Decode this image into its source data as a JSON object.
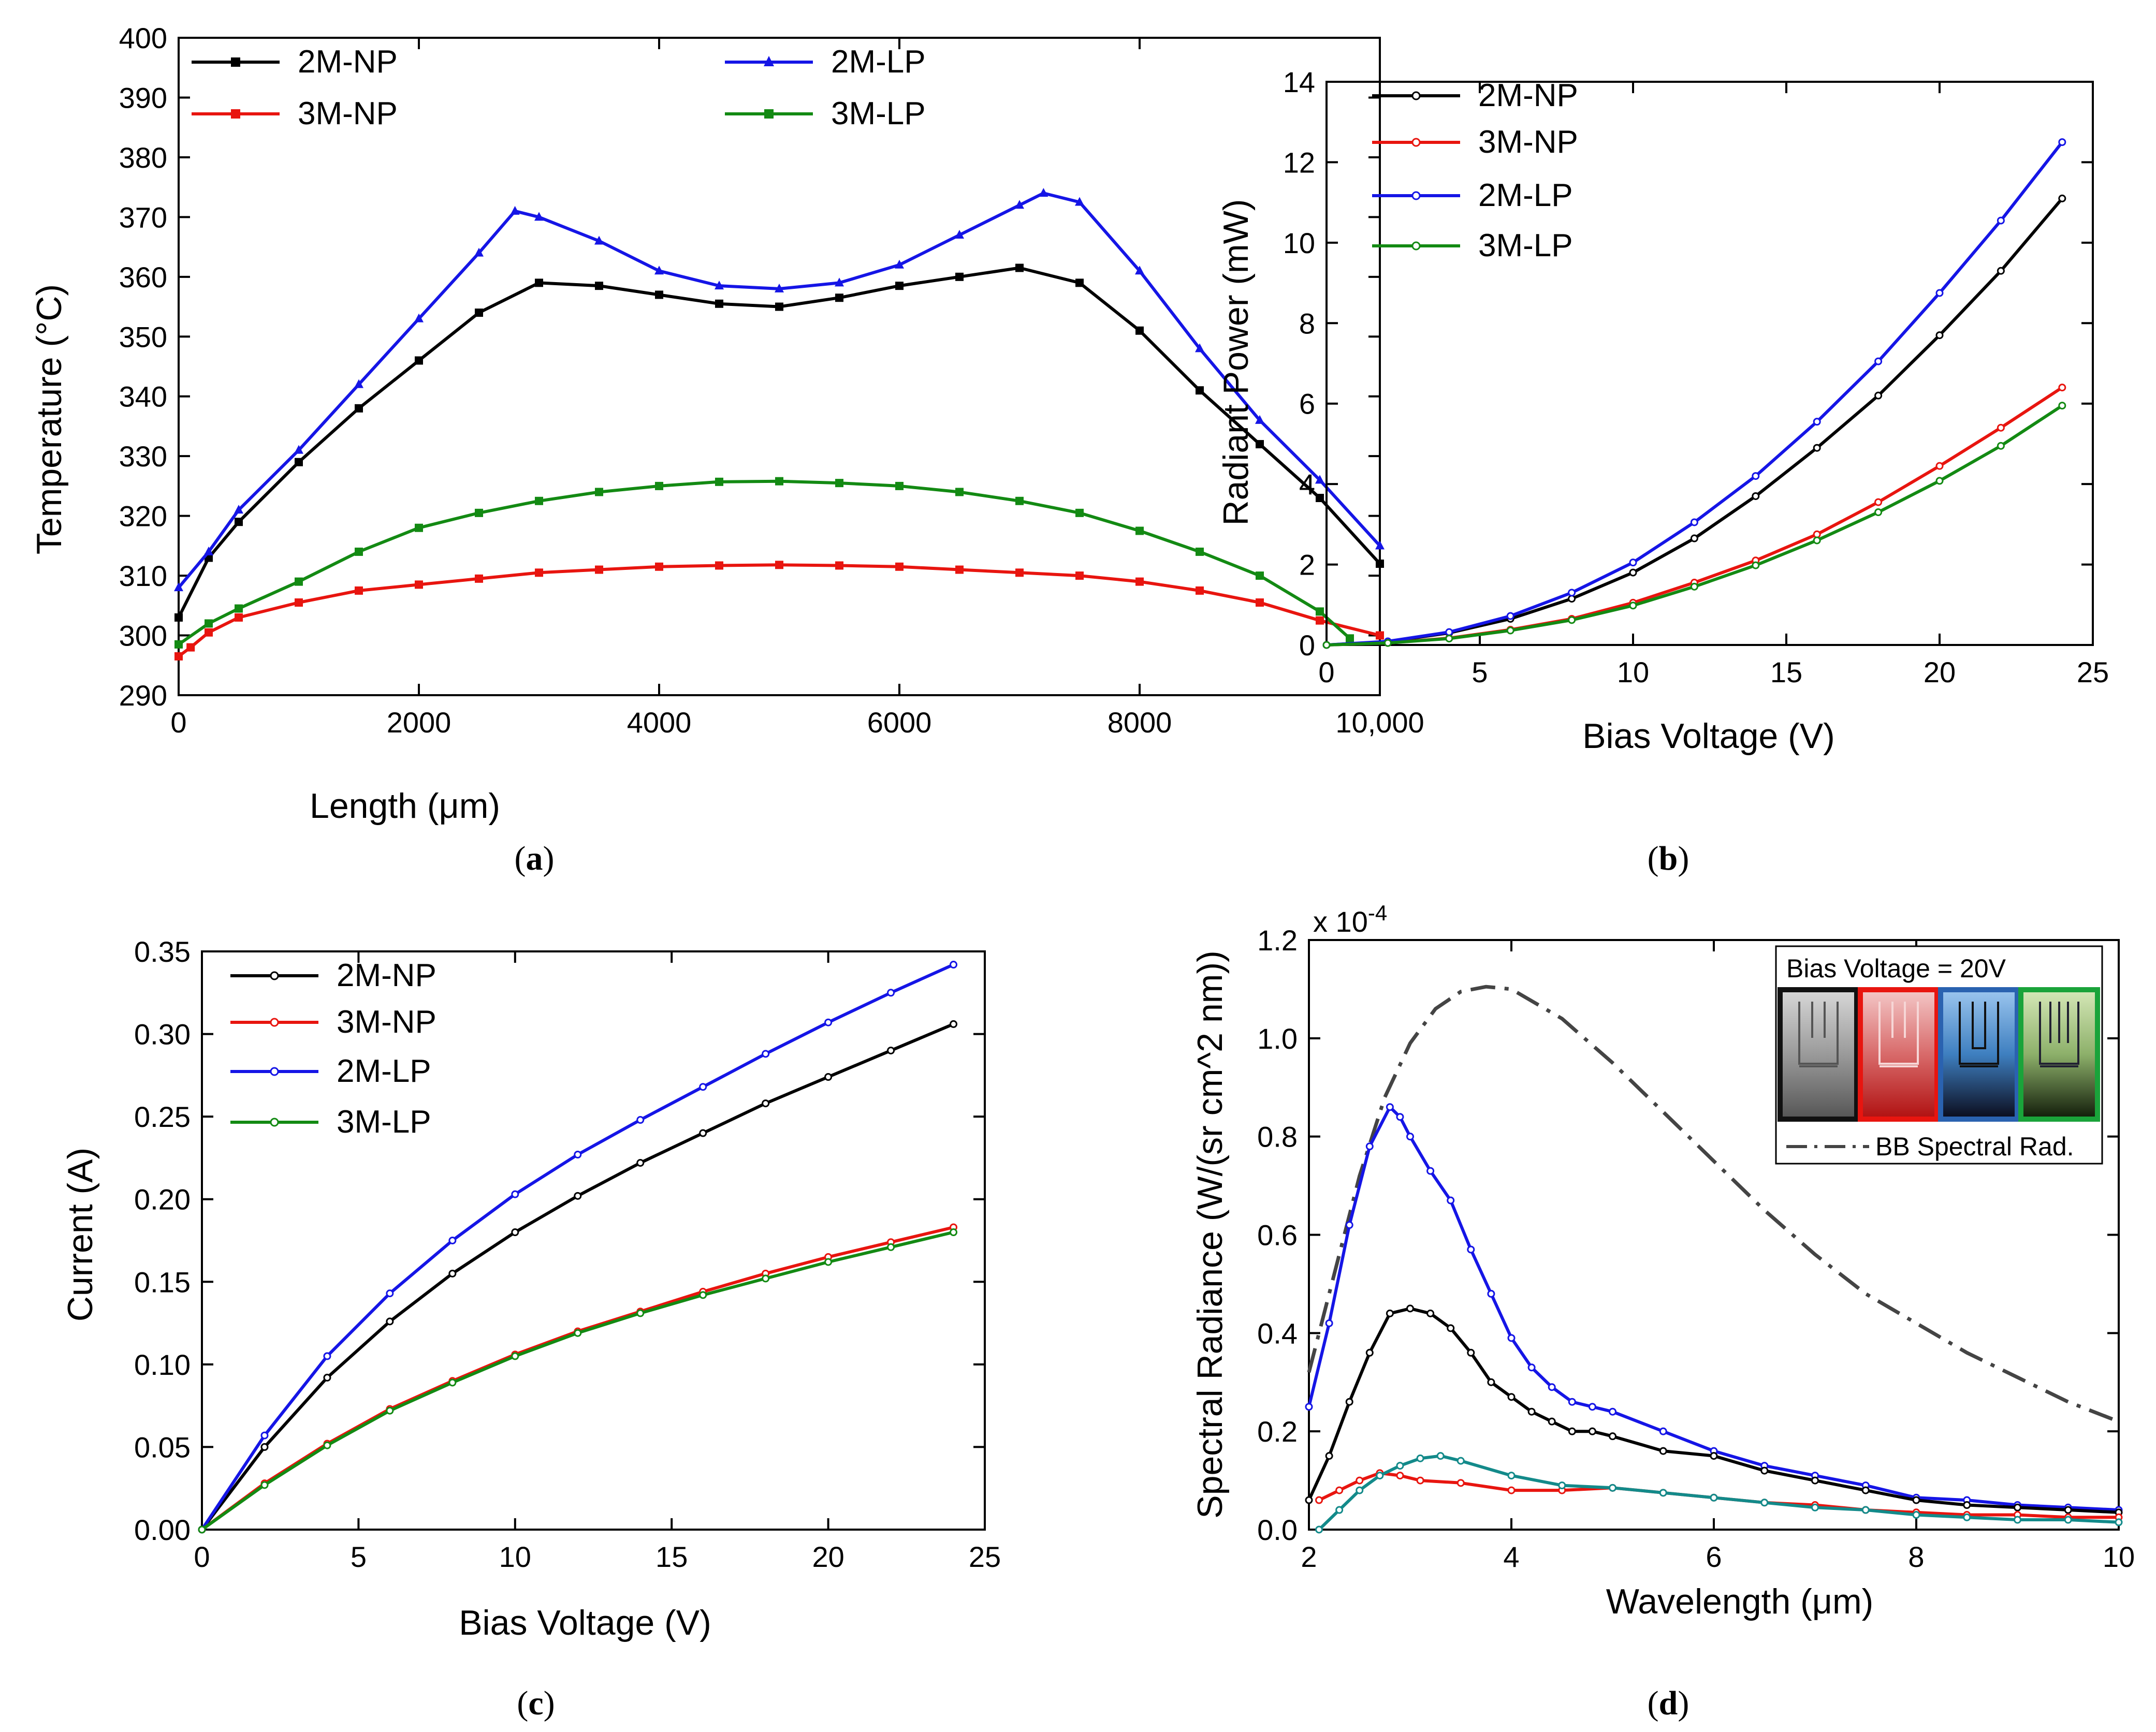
{
  "colors": {
    "2M-NP": "#000000",
    "3M-NP": "#e8150f",
    "2M-LP": "#1515e6",
    "3M-LP": "#138a13",
    "3M-LP-d": "#138a8a",
    "BB": "#444444"
  },
  "chart_data": [
    {
      "id": "a",
      "type": "line",
      "caption": {
        "open": "(",
        "letter": "a",
        "close": ")"
      },
      "xlabel": "Length (μm)",
      "ylabel": "Temperature (°C)",
      "xlim": [
        0,
        10000
      ],
      "ylim": [
        290,
        400
      ],
      "xticks": [
        0,
        2000,
        4000,
        6000,
        8000,
        10000
      ],
      "xtick_labels": [
        "0",
        "2000",
        "4000",
        "6000",
        "8000",
        "10,000"
      ],
      "yticks": [
        290,
        300,
        310,
        320,
        330,
        340,
        350,
        360,
        370,
        380,
        390,
        400
      ],
      "ytick_labels": [
        "290",
        "300",
        "310",
        "320",
        "330",
        "340",
        "350",
        "360",
        "370",
        "380",
        "390",
        "400"
      ],
      "series": [
        {
          "name": "2M-NP",
          "marker": "square",
          "x": [
            0,
            250,
            500,
            1000,
            1500,
            2000,
            2500,
            3000,
            3500,
            4000,
            4500,
            5000,
            5500,
            6000,
            6500,
            7000,
            7500,
            8000,
            8500,
            9000,
            9500,
            10000
          ],
          "y": [
            303,
            313,
            319,
            329,
            338,
            346,
            354,
            359,
            358.5,
            357,
            355.5,
            355,
            356.5,
            358.5,
            360,
            361.5,
            359,
            351,
            341,
            332,
            323,
            312
          ]
        },
        {
          "name": "3M-NP",
          "marker": "square",
          "x": [
            0,
            100,
            250,
            500,
            1000,
            1500,
            2000,
            2500,
            3000,
            3500,
            4000,
            4500,
            5000,
            5500,
            6000,
            6500,
            7000,
            7500,
            8000,
            8500,
            9000,
            9500,
            10000
          ],
          "y": [
            296.5,
            298,
            300.5,
            303,
            305.5,
            307.5,
            308.5,
            309.5,
            310.5,
            311,
            311.5,
            311.7,
            311.8,
            311.7,
            311.5,
            311,
            310.5,
            310,
            309,
            307.5,
            305.5,
            302.5,
            300
          ]
        },
        {
          "name": "2M-LP",
          "marker": "triangle",
          "x": [
            0,
            250,
            500,
            1000,
            1500,
            2000,
            2500,
            2800,
            3000,
            3500,
            4000,
            4500,
            5000,
            5500,
            6000,
            6500,
            7000,
            7200,
            7500,
            8000,
            8500,
            9000,
            9500,
            10000
          ],
          "y": [
            308,
            314,
            321,
            331,
            342,
            353,
            364,
            371,
            370,
            366,
            361,
            358.5,
            358,
            359,
            362,
            367,
            372,
            374,
            372.5,
            361,
            348,
            336,
            326,
            315
          ]
        },
        {
          "name": "3M-LP",
          "marker": "square",
          "x": [
            0,
            250,
            500,
            1000,
            1500,
            2000,
            2500,
            3000,
            3500,
            4000,
            4500,
            5000,
            5500,
            6000,
            6500,
            7000,
            7500,
            8000,
            8500,
            9000,
            9500,
            9750
          ],
          "y": [
            298.5,
            302,
            304.5,
            309,
            314,
            318,
            320.5,
            322.5,
            324,
            325,
            325.7,
            325.8,
            325.5,
            325,
            324,
            322.5,
            320.5,
            317.5,
            314,
            310,
            304,
            299.5
          ]
        }
      ],
      "legend": {
        "placement": "top",
        "entries": [
          "2M-NP",
          "3M-NP",
          "2M-LP",
          "3M-LP"
        ]
      }
    },
    {
      "id": "b",
      "type": "line",
      "caption": {
        "open": "(",
        "letter": "b",
        "close": ")"
      },
      "xlabel": "Bias Voltage (V)",
      "ylabel": "Radiant Power (mW)",
      "xlim": [
        0,
        25
      ],
      "ylim": [
        0,
        14
      ],
      "xticks": [
        0,
        5,
        10,
        15,
        20,
        25
      ],
      "xtick_labels": [
        "0",
        "5",
        "10",
        "15",
        "20",
        "25"
      ],
      "yticks": [
        0,
        2,
        4,
        6,
        8,
        10,
        12,
        14
      ],
      "ytick_labels": [
        "0",
        "2",
        "4",
        "6",
        "8",
        "10",
        "12",
        "14"
      ],
      "series": [
        {
          "name": "2M-NP",
          "x": [
            0,
            2,
            4,
            6,
            8,
            10,
            12,
            14,
            16,
            18,
            20,
            22,
            24
          ],
          "y": [
            0,
            0.08,
            0.3,
            0.65,
            1.15,
            1.8,
            2.65,
            3.7,
            4.9,
            6.2,
            7.7,
            9.3,
            11.1
          ]
        },
        {
          "name": "3M-NP",
          "x": [
            0,
            2,
            4,
            6,
            8,
            10,
            12,
            14,
            16,
            18,
            20,
            22,
            24
          ],
          "y": [
            0,
            0.05,
            0.17,
            0.38,
            0.65,
            1.05,
            1.55,
            2.1,
            2.75,
            3.55,
            4.45,
            5.4,
            6.4
          ]
        },
        {
          "name": "2M-LP",
          "x": [
            0,
            2,
            4,
            6,
            8,
            10,
            12,
            14,
            16,
            18,
            20,
            22,
            24
          ],
          "y": [
            0,
            0.09,
            0.32,
            0.72,
            1.3,
            2.05,
            3.05,
            4.2,
            5.55,
            7.05,
            8.75,
            10.55,
            12.5
          ]
        },
        {
          "name": "3M-LP",
          "x": [
            0,
            2,
            4,
            6,
            8,
            10,
            12,
            14,
            16,
            18,
            20,
            22,
            24
          ],
          "y": [
            0,
            0.05,
            0.16,
            0.36,
            0.62,
            0.98,
            1.45,
            1.98,
            2.6,
            3.3,
            4.08,
            4.95,
            5.95
          ]
        }
      ],
      "legend": {
        "placement": "top-left",
        "entries": [
          "2M-NP",
          "3M-NP",
          "2M-LP",
          "3M-LP"
        ]
      }
    },
    {
      "id": "c",
      "type": "line",
      "caption": {
        "open": "(",
        "letter": "c",
        "close": ")"
      },
      "xlabel": "Bias Voltage (V)",
      "ylabel": "Current (A)",
      "xlim": [
        0,
        25
      ],
      "ylim": [
        0,
        0.35
      ],
      "xticks": [
        0,
        5,
        10,
        15,
        20,
        25
      ],
      "xtick_labels": [
        "0",
        "5",
        "10",
        "15",
        "20",
        "25"
      ],
      "yticks": [
        0,
        0.05,
        0.1,
        0.15,
        0.2,
        0.25,
        0.3,
        0.35
      ],
      "ytick_labels": [
        "0.00",
        "0.05",
        "0.10",
        "0.15",
        "0.20",
        "0.25",
        "0.30",
        "0.35"
      ],
      "series": [
        {
          "name": "2M-NP",
          "x": [
            0,
            2,
            4,
            6,
            8,
            10,
            12,
            14,
            16,
            18,
            20,
            22,
            24
          ],
          "y": [
            0,
            0.05,
            0.092,
            0.126,
            0.155,
            0.18,
            0.202,
            0.222,
            0.24,
            0.258,
            0.274,
            0.29,
            0.306
          ]
        },
        {
          "name": "3M-NP",
          "x": [
            0,
            2,
            4,
            6,
            8,
            10,
            12,
            14,
            16,
            18,
            20,
            22,
            24
          ],
          "y": [
            0,
            0.028,
            0.052,
            0.073,
            0.09,
            0.106,
            0.12,
            0.132,
            0.144,
            0.155,
            0.165,
            0.174,
            0.183
          ]
        },
        {
          "name": "2M-LP",
          "x": [
            0,
            2,
            4,
            6,
            8,
            10,
            12,
            14,
            16,
            18,
            20,
            22,
            24
          ],
          "y": [
            0,
            0.057,
            0.105,
            0.143,
            0.175,
            0.203,
            0.227,
            0.248,
            0.268,
            0.288,
            0.307,
            0.325,
            0.342
          ]
        },
        {
          "name": "3M-LP",
          "x": [
            0,
            2,
            4,
            6,
            8,
            10,
            12,
            14,
            16,
            18,
            20,
            22,
            24
          ],
          "y": [
            0,
            0.027,
            0.051,
            0.072,
            0.089,
            0.105,
            0.119,
            0.131,
            0.142,
            0.152,
            0.162,
            0.171,
            0.18
          ]
        }
      ],
      "legend": {
        "placement": "top-left",
        "entries": [
          "2M-NP",
          "3M-NP",
          "2M-LP",
          "3M-LP"
        ]
      }
    },
    {
      "id": "d",
      "type": "line",
      "caption": {
        "open": "(",
        "letter": "d",
        "close": ")"
      },
      "xlabel": "Wavelength (μm)",
      "ylabel": "Spectral Radiance (W/(sr cm^2 nm))",
      "scale_label": "x 10",
      "scale_exp": "-4",
      "xlim": [
        2,
        10
      ],
      "ylim": [
        0,
        1.2
      ],
      "xticks": [
        2,
        4,
        6,
        8,
        10
      ],
      "xtick_labels": [
        "2",
        "4",
        "6",
        "8",
        "10"
      ],
      "yticks": [
        0,
        0.2,
        0.4,
        0.6,
        0.8,
        1.0,
        1.2
      ],
      "ytick_labels": [
        "0.0",
        "0.2",
        "0.4",
        "0.6",
        "0.8",
        "1.0",
        "1.2"
      ],
      "inset_title": "Bias Voltage = 20V",
      "series": [
        {
          "name": "BB Spectral Rad.",
          "style": "dashdot",
          "x": [
            2,
            2.25,
            2.5,
            2.75,
            3,
            3.25,
            3.5,
            3.75,
            4,
            4.5,
            5,
            5.5,
            6,
            6.5,
            7,
            7.5,
            8,
            8.5,
            9,
            9.5,
            10
          ],
          "y": [
            0.32,
            0.52,
            0.72,
            0.88,
            0.99,
            1.06,
            1.095,
            1.105,
            1.1,
            1.04,
            0.95,
            0.85,
            0.75,
            0.65,
            0.56,
            0.48,
            0.42,
            0.36,
            0.31,
            0.26,
            0.22
          ]
        },
        {
          "name": "2M-LP",
          "x": [
            2,
            2.2,
            2.4,
            2.6,
            2.8,
            2.9,
            3,
            3.2,
            3.4,
            3.6,
            3.8,
            4,
            4.2,
            4.4,
            4.6,
            4.8,
            5,
            5.5,
            6,
            6.5,
            7,
            7.5,
            8,
            8.5,
            9,
            9.5,
            10
          ],
          "y": [
            0.25,
            0.42,
            0.62,
            0.78,
            0.86,
            0.84,
            0.8,
            0.73,
            0.67,
            0.57,
            0.48,
            0.39,
            0.33,
            0.29,
            0.26,
            0.25,
            0.24,
            0.2,
            0.16,
            0.13,
            0.11,
            0.09,
            0.065,
            0.06,
            0.05,
            0.045,
            0.04
          ]
        },
        {
          "name": "2M-NP",
          "x": [
            2,
            2.2,
            2.4,
            2.6,
            2.8,
            3,
            3.2,
            3.4,
            3.6,
            3.8,
            4,
            4.2,
            4.4,
            4.6,
            4.8,
            5,
            5.5,
            6,
            6.5,
            7,
            7.5,
            8,
            8.5,
            9,
            9.5,
            10
          ],
          "y": [
            0.06,
            0.15,
            0.26,
            0.36,
            0.44,
            0.45,
            0.44,
            0.41,
            0.36,
            0.3,
            0.27,
            0.24,
            0.22,
            0.2,
            0.2,
            0.19,
            0.16,
            0.15,
            0.12,
            0.1,
            0.08,
            0.06,
            0.05,
            0.045,
            0.04,
            0.035
          ]
        },
        {
          "name": "3M-NP",
          "x": [
            2.1,
            2.3,
            2.5,
            2.7,
            2.9,
            3.1,
            3.5,
            4,
            4.5,
            5,
            5.5,
            6,
            6.5,
            7,
            7.5,
            8,
            8.5,
            9,
            9.5,
            10
          ],
          "y": [
            0.06,
            0.08,
            0.1,
            0.115,
            0.11,
            0.1,
            0.095,
            0.08,
            0.08,
            0.085,
            0.075,
            0.065,
            0.055,
            0.05,
            0.04,
            0.035,
            0.03,
            0.03,
            0.025,
            0.025
          ]
        },
        {
          "name": "3M-LP",
          "x": [
            2.1,
            2.3,
            2.5,
            2.7,
            2.9,
            3.1,
            3.3,
            3.5,
            4,
            4.5,
            5,
            5.5,
            6,
            6.5,
            7,
            7.5,
            8,
            8.5,
            9,
            9.5,
            10
          ],
          "y": [
            0.0,
            0.04,
            0.08,
            0.11,
            0.13,
            0.145,
            0.15,
            0.14,
            0.11,
            0.09,
            0.085,
            0.075,
            0.065,
            0.055,
            0.045,
            0.04,
            0.03,
            0.025,
            0.02,
            0.02,
            0.015
          ]
        }
      ],
      "legend": {
        "placement": "top-right",
        "entries": [
          "BB Spectral Rad."
        ]
      }
    }
  ]
}
